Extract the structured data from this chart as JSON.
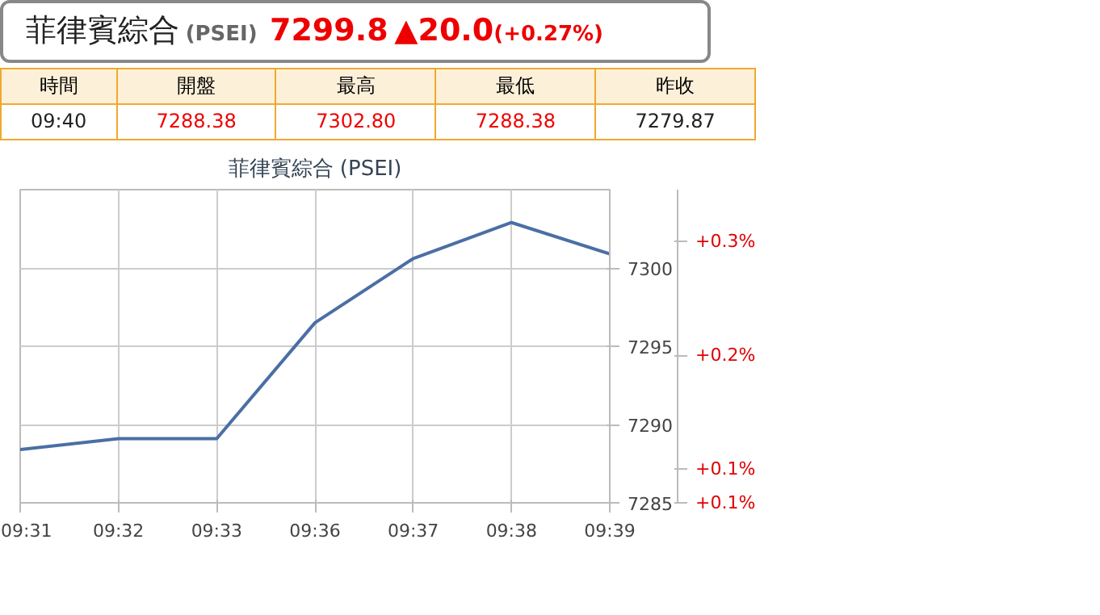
{
  "chart_data": {
    "type": "line",
    "title": "菲律賓綜合 (PSEI)",
    "categories": [
      "09:31",
      "09:32",
      "09:33",
      "09:36",
      "09:37",
      "09:38",
      "09:39"
    ],
    "series": [
      {
        "color": "#4a6fa5",
        "values": [
          7288.4,
          7289.1,
          7289.1,
          7296.5,
          7300.6,
          7302.9,
          7300.9
        ]
      }
    ],
    "ylim": [
      7285,
      7305
    ],
    "yticks": [
      7285,
      7290,
      7295,
      7300
    ],
    "y2lim": [
      0.0705,
      0.3452
    ],
    "y2ticks": [
      {
        "value": 0.0705,
        "label": "+0.1%"
      },
      {
        "value": 0.1,
        "label": "+0.1%"
      },
      {
        "value": 0.2,
        "label": "+0.2%"
      },
      {
        "value": 0.3,
        "label": "+0.3%"
      }
    ],
    "grid": true,
    "marker": "none",
    "line_style": "solid",
    "annotations": [
      "菲律賓綜合",
      "(PSEI)",
      "7299.8",
      "▲20.0",
      "(+0.27%)",
      "時間",
      "開盤",
      "最高",
      "最低",
      "昨收",
      "09:40",
      "7288.38",
      "7302.80",
      "7288.38",
      "7279.87"
    ]
  }
}
